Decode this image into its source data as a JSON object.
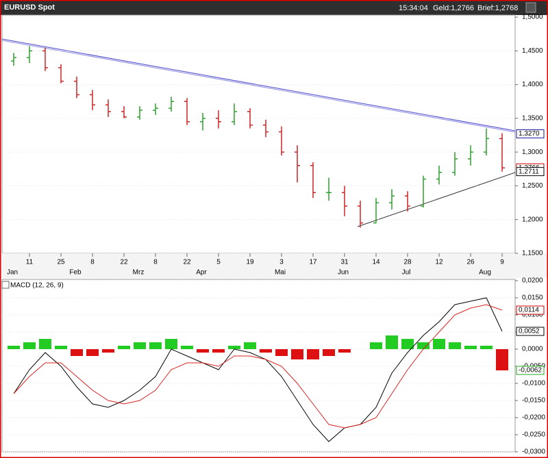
{
  "header": {
    "title": "EURUSD Spot",
    "time": "15:34:04",
    "bid": "Geld:1,2766",
    "ask": "Brief:1,2768"
  },
  "chart_data": [
    {
      "type": "ohlc",
      "categories": [
        null,
        "11",
        null,
        "25",
        null,
        "8",
        null,
        "22",
        null,
        "8",
        null,
        "22",
        null,
        "5",
        null,
        "19",
        null,
        "3",
        null,
        "17",
        null,
        "31",
        null,
        "14",
        null,
        "28",
        null,
        "12",
        null,
        "26",
        null,
        "9"
      ],
      "months": [
        "Jan",
        null,
        null,
        null,
        "Feb",
        null,
        null,
        null,
        "Mrz",
        null,
        null,
        null,
        "Apr",
        null,
        null,
        null,
        null,
        "Mai",
        null,
        null,
        null,
        "Jun",
        null,
        null,
        null,
        "Jul",
        null,
        null,
        null,
        null,
        "Aug",
        null
      ],
      "open": [
        1.435,
        1.44,
        1.45,
        1.425,
        1.405,
        1.385,
        1.37,
        1.36,
        1.352,
        1.362,
        1.365,
        1.375,
        1.345,
        1.35,
        1.345,
        1.36,
        1.34,
        1.33,
        1.3,
        1.28,
        1.24,
        1.24,
        1.22,
        1.195,
        1.225,
        1.235,
        1.22,
        1.26,
        1.27,
        1.29,
        1.3,
        1.32
      ],
      "high": [
        1.447,
        1.457,
        1.455,
        1.43,
        1.412,
        1.392,
        1.378,
        1.368,
        1.368,
        1.372,
        1.382,
        1.38,
        1.358,
        1.362,
        1.372,
        1.365,
        1.348,
        1.338,
        1.31,
        1.285,
        1.262,
        1.25,
        1.228,
        1.232,
        1.245,
        1.242,
        1.265,
        1.28,
        1.3,
        1.31,
        1.335,
        1.328
      ],
      "low": [
        1.428,
        1.432,
        1.42,
        1.402,
        1.38,
        1.362,
        1.352,
        1.35,
        1.348,
        1.355,
        1.36,
        1.34,
        1.332,
        1.335,
        1.34,
        1.335,
        1.322,
        1.295,
        1.255,
        1.232,
        1.228,
        1.205,
        1.188,
        1.195,
        1.215,
        1.212,
        1.218,
        1.252,
        1.265,
        1.28,
        1.295,
        1.271
      ],
      "close": [
        1.44,
        1.45,
        1.425,
        1.405,
        1.385,
        1.37,
        1.36,
        1.352,
        1.362,
        1.365,
        1.375,
        1.345,
        1.35,
        1.345,
        1.36,
        1.34,
        1.33,
        1.3,
        1.28,
        1.24,
        1.24,
        1.22,
        1.195,
        1.225,
        1.235,
        1.22,
        1.26,
        1.27,
        1.29,
        1.3,
        1.32,
        1.2766
      ],
      "up_color": "#2ca02c",
      "down_color": "#cc2222",
      "ylim": [
        1.15,
        1.5
      ],
      "yticks": [
        {
          "value": 1.15,
          "label": "1,1500"
        },
        {
          "value": 1.2,
          "label": "1,2000"
        },
        {
          "value": 1.25,
          "label": "1,2500"
        },
        {
          "value": 1.3,
          "label": "1,3000"
        },
        {
          "value": 1.35,
          "label": "1,3500"
        },
        {
          "value": 1.4,
          "label": "1,4000"
        },
        {
          "value": 1.45,
          "label": "1,4500"
        },
        {
          "value": 1.5,
          "label": "1,5000"
        }
      ],
      "markers": [
        {
          "value": 1.327,
          "label": "1,3270",
          "color": "#1a1a99"
        },
        {
          "value": 1.2766,
          "label": "1,2766",
          "color": "#cc0000"
        },
        {
          "value": 1.2711,
          "label": "1,2711",
          "color": "#000000"
        }
      ],
      "grid": true
    },
    {
      "type": "macd",
      "title": "MACD (12, 26, 9)",
      "series": [
        {
          "name": "MACD",
          "color": "#000000",
          "values": [
            -0.013,
            -0.006,
            -0.001,
            -0.005,
            -0.011,
            -0.016,
            -0.017,
            -0.015,
            -0.012,
            -0.008,
            0.0,
            -0.002,
            -0.004,
            -0.006,
            0.0,
            -0.001,
            -0.003,
            -0.008,
            -0.015,
            -0.022,
            -0.027,
            -0.023,
            -0.022,
            -0.017,
            -0.007,
            -0.001,
            0.004,
            0.008,
            0.013,
            0.014,
            0.015,
            0.0052
          ]
        },
        {
          "name": "Signal",
          "color": "#dd2222",
          "values": [
            -0.013,
            -0.008,
            -0.004,
            -0.004,
            -0.008,
            -0.012,
            -0.015,
            -0.016,
            -0.015,
            -0.012,
            -0.006,
            -0.004,
            -0.004,
            -0.005,
            -0.002,
            -0.002,
            -0.003,
            -0.005,
            -0.01,
            -0.016,
            -0.022,
            -0.023,
            -0.022,
            -0.02,
            -0.013,
            -0.006,
            0.0,
            0.005,
            0.01,
            0.012,
            0.013,
            0.0114
          ]
        }
      ],
      "histogram": [
        0.001,
        0.002,
        0.003,
        0.001,
        -0.002,
        -0.002,
        -0.001,
        0.001,
        0.002,
        0.002,
        0.003,
        0.001,
        -0.001,
        -0.001,
        0.001,
        0.002,
        -0.001,
        -0.002,
        -0.003,
        -0.003,
        -0.002,
        -0.001,
        0.0,
        0.002,
        0.004,
        0.003,
        0.002,
        0.003,
        0.002,
        0.001,
        0.001,
        -0.0062
      ],
      "up_color": "#22cc22",
      "down_color": "#dd1111",
      "ylim": [
        -0.03,
        0.02
      ],
      "yticks": [
        {
          "value": -0.03,
          "label": "-0,0300"
        },
        {
          "value": -0.025,
          "label": "-0,0250"
        },
        {
          "value": -0.02,
          "label": "-0,0200"
        },
        {
          "value": -0.015,
          "label": "-0,0150"
        },
        {
          "value": -0.01,
          "label": "-0,0100"
        },
        {
          "value": -0.005,
          "label": "-0,0050"
        },
        {
          "value": 0,
          "label": "0,0000"
        },
        {
          "value": 0.005,
          "label": "0,0050"
        },
        {
          "value": 0.01,
          "label": "0,0100"
        },
        {
          "value": 0.015,
          "label": "0,0150"
        },
        {
          "value": 0.02,
          "label": "0,0200"
        }
      ],
      "markers": [
        {
          "value": 0.0114,
          "label": "0,0114",
          "color": "#cc0000"
        },
        {
          "value": 0.0052,
          "label": "0,0052",
          "color": "#000000"
        },
        {
          "value": -0.0062,
          "label": "-0,0062",
          "color": "#22aa22"
        }
      ],
      "grid": true
    }
  ]
}
